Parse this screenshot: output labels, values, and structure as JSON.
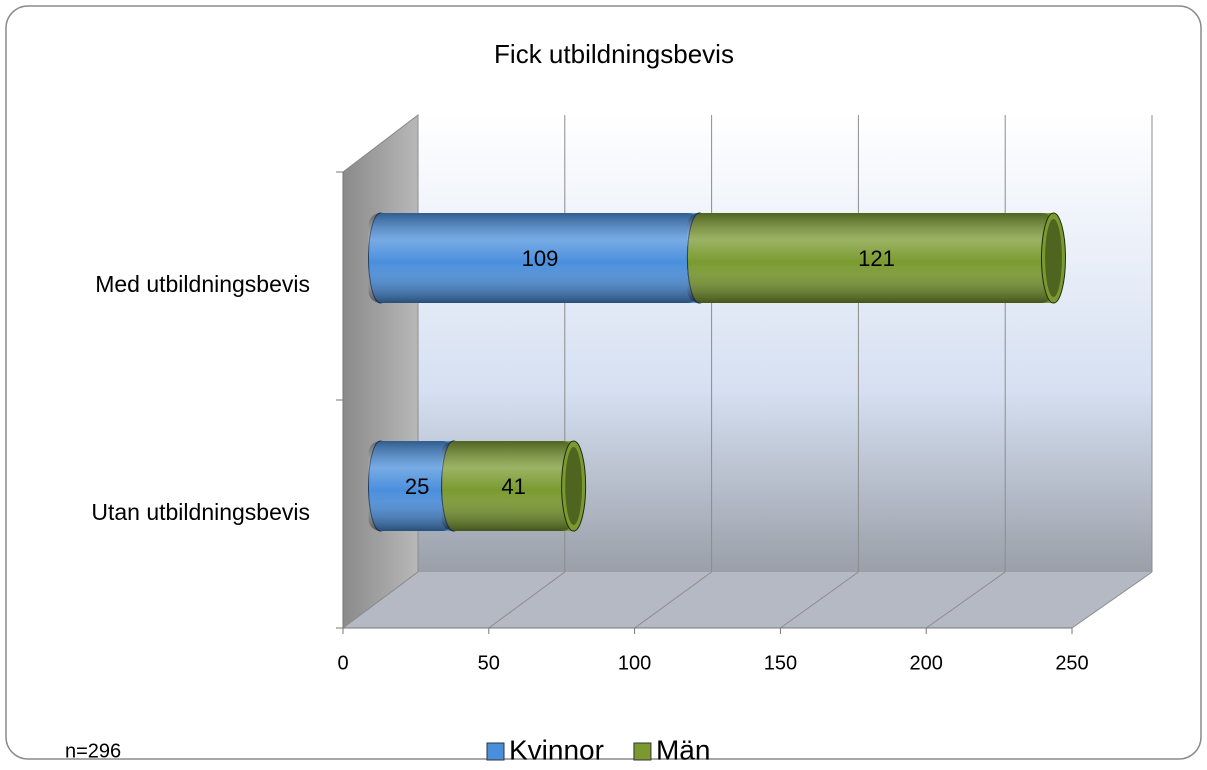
{
  "chart_data": {
    "type": "bar3d_stacked_horizontal",
    "title": "Fick utbildningsbevis",
    "categories": [
      "Med utbildningsbevis",
      "Utan utbildningsbevis"
    ],
    "series": [
      {
        "name": "Kvinnor",
        "color": "#4a8fdc",
        "values": [
          109,
          25
        ]
      },
      {
        "name": "Män",
        "color": "#7a9a30",
        "values": [
          121,
          41
        ]
      }
    ],
    "xlim": [
      0,
      250
    ],
    "xticks": [
      0,
      50,
      100,
      150,
      200,
      250
    ],
    "grid": true,
    "legend": "bottom",
    "annotation": "n=296"
  }
}
